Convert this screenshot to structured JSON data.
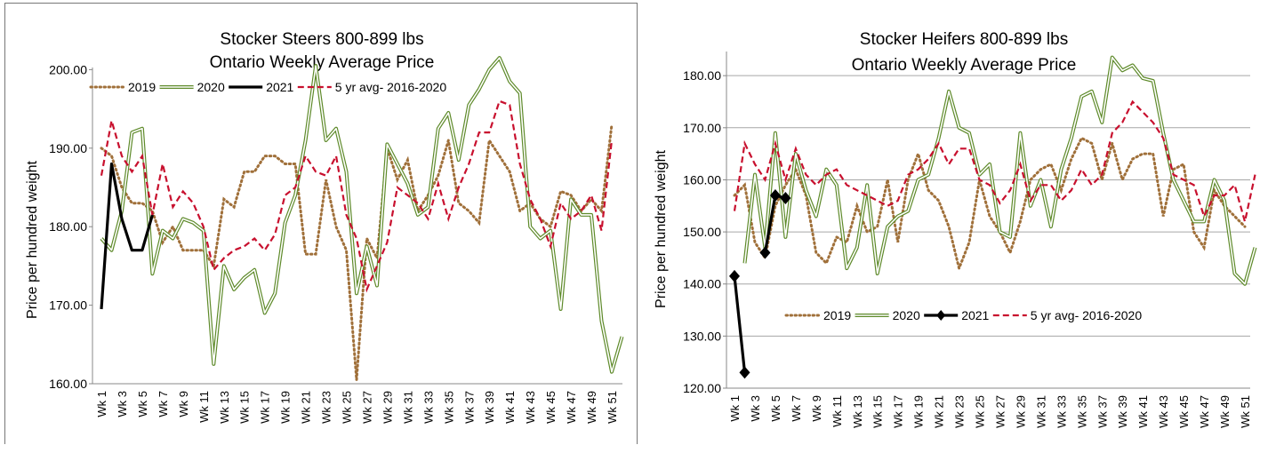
{
  "chart_data": [
    {
      "type": "line",
      "title": "Stocker Steers 800-899 lbs",
      "subtitle": "Ontario Weekly Average Price",
      "xlabel": "",
      "ylabel": "Price per hundred weight",
      "ylim": [
        160,
        205
      ],
      "yticks": [
        "160.00",
        "170.00",
        "180.00",
        "190.00",
        "200.00"
      ],
      "x_tick_labels": [
        "Wk 1",
        "Wk 3",
        "Wk 5",
        "Wk 7",
        "Wk 9",
        "Wk 11",
        "Wk 13",
        "Wk 15",
        "Wk 17",
        "Wk 19",
        "Wk 21",
        "Wk 23",
        "Wk 25",
        "Wk 27",
        "Wk 29",
        "Wk 31",
        "Wk 33",
        "Wk 35",
        "Wk 37",
        "Wk 39",
        "Wk 41",
        "Wk 43",
        "Wk 45",
        "Wk 47",
        "Wk 49",
        "Wk 51"
      ],
      "grid": false,
      "legend_position": "top",
      "series": [
        {
          "name": "2019",
          "style": "dotted",
          "color": "#a0703a",
          "values": [
            190,
            189,
            185,
            183,
            183,
            182,
            178,
            180,
            177,
            177,
            177,
            175,
            183.5,
            182.5,
            187,
            187,
            189,
            189,
            188,
            188,
            176.5,
            176.5,
            186,
            180,
            177,
            160.5,
            178.5,
            176,
            190,
            186,
            188.5,
            182,
            184,
            186.5,
            191,
            183,
            182,
            180.5,
            191,
            189,
            187,
            182,
            183,
            181,
            180,
            184.5,
            184,
            182,
            183.5,
            182,
            193
          ]
        },
        {
          "name": "2020",
          "style": "double",
          "color": "#5e8a2a",
          "values": [
            178.5,
            177,
            182,
            192,
            192.5,
            174,
            179.5,
            178.5,
            181,
            180.5,
            179.5,
            162.5,
            175,
            172,
            173.5,
            174.5,
            169,
            171.5,
            180.5,
            184,
            191,
            200.5,
            191,
            192.5,
            187,
            171.5,
            177.5,
            172.5,
            190.5,
            188,
            185.5,
            181.5,
            182.5,
            192.5,
            194.5,
            188.5,
            195.5,
            197.5,
            200,
            201.5,
            198.5,
            197,
            180,
            178.5,
            179.5,
            169.5,
            183.5,
            181.5,
            181.5,
            168,
            161.5,
            166
          ]
        },
        {
          "name": "2021",
          "style": "solid",
          "color": "#000000",
          "values": [
            169.5,
            188,
            181,
            177,
            177,
            181.5
          ]
        },
        {
          "name": "5 yr avg- 2016-2020",
          "style": "dashed",
          "color": "#c8102e",
          "values": [
            186.5,
            193.5,
            189,
            187,
            189,
            181.5,
            188,
            182.5,
            184.5,
            183,
            180,
            174.5,
            176,
            177,
            177.5,
            178.5,
            177,
            179,
            184,
            185,
            189,
            187,
            186.5,
            189,
            181.5,
            178.5,
            172,
            175,
            178,
            185,
            184,
            183,
            181,
            185.5,
            181,
            185,
            188,
            192,
            192,
            196,
            195.5,
            188,
            183.5,
            181,
            177.5,
            183,
            181,
            182,
            184,
            179.5,
            191
          ]
        }
      ]
    },
    {
      "type": "line",
      "title": "Stocker Heifers 800-899 lbs",
      "subtitle": "Ontario Weekly Average Price",
      "xlabel": "",
      "ylabel": "Price per hundred weight",
      "ylim": [
        120,
        185
      ],
      "yticks": [
        "120.00",
        "130.00",
        "140.00",
        "150.00",
        "160.00",
        "170.00",
        "180.00"
      ],
      "x_tick_labels": [
        "Wk 1",
        "Wk 3",
        "Wk 5",
        "Wk 7",
        "Wk 9",
        "Wk 11",
        "Wk 13",
        "Wk 15",
        "Wk 17",
        "Wk 19",
        "Wk 21",
        "Wk 23",
        "Wk 25",
        "Wk 27",
        "Wk 29",
        "Wk 31",
        "Wk 33",
        "Wk 35",
        "Wk 37",
        "Wk 39",
        "Wk 41",
        "Wk 43",
        "Wk 45",
        "Wk 47",
        "Wk 49",
        "Wk 51"
      ],
      "grid": true,
      "legend_position": "bottom-center",
      "series": [
        {
          "name": "2019",
          "style": "dotted",
          "color": "#a0703a",
          "values": [
            157,
            159,
            148,
            145,
            155,
            159,
            162,
            157,
            146,
            144,
            149,
            148,
            155,
            150,
            151,
            160,
            148,
            160,
            165,
            158,
            156,
            151,
            143,
            148,
            160,
            153,
            150,
            146,
            152,
            160,
            162,
            163,
            158,
            164,
            168,
            167,
            160,
            167,
            160,
            164,
            165,
            165,
            153,
            162,
            163,
            150,
            147,
            158,
            155,
            153,
            151
          ]
        },
        {
          "name": "2020",
          "style": "double",
          "color": "#5e8a2a",
          "values": [
            null,
            144,
            161,
            147,
            169,
            149,
            165,
            158,
            153,
            162,
            159,
            143,
            147,
            159,
            142,
            151,
            153,
            154,
            160,
            161,
            168,
            177,
            170,
            169,
            161,
            163,
            150,
            149,
            169,
            155,
            160,
            151,
            162,
            168,
            176,
            177,
            171,
            183.5,
            181,
            182,
            179.5,
            179,
            169,
            160,
            156,
            152,
            152,
            160,
            156,
            142,
            140,
            147
          ]
        },
        {
          "name": "2021",
          "style": "solid-marker",
          "color": "#000000",
          "values": [
            141.5,
            123,
            null,
            146,
            157,
            156.5
          ]
        },
        {
          "name": "5 yr avg- 2016-2020",
          "style": "dashed",
          "color": "#c8102e",
          "values": [
            154,
            167,
            163,
            160,
            167,
            160,
            166,
            161,
            159,
            161,
            162,
            159,
            158,
            157,
            156,
            155,
            156,
            161,
            162,
            164,
            167,
            163,
            166,
            166,
            160,
            159,
            155.5,
            158,
            163,
            156,
            159,
            159,
            156,
            158,
            162,
            159,
            161,
            169,
            171,
            175,
            173,
            171,
            168,
            161,
            160,
            159,
            153,
            157,
            157,
            159,
            152,
            161
          ]
        }
      ]
    }
  ]
}
